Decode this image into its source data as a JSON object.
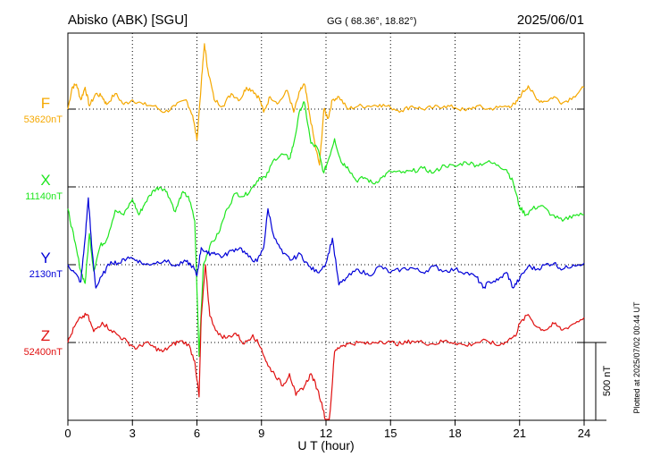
{
  "header": {
    "station": "Abisko (ABK)  [SGU]",
    "coords": "GG ( 68.36°,  18.82°)",
    "date": "2025/06/01"
  },
  "footer": {
    "plotted": "Plotted at 2025/07/02 00:44 UT"
  },
  "scale_label": "500 nT",
  "colors": {
    "F": "#f5a800",
    "X": "#1ee61e",
    "Y": "#0000d8",
    "Z": "#e01010"
  },
  "chart_data": {
    "type": "line",
    "xlabel": "U T (hour)",
    "xlim": [
      0,
      24
    ],
    "x_ticks": [
      0,
      3,
      6,
      9,
      12,
      15,
      18,
      21,
      24
    ],
    "x_tick_labels": [
      "0",
      "3",
      "6",
      "9",
      "12",
      "15",
      "18",
      "21",
      "24"
    ],
    "scale_bar_nT": 500,
    "series": [
      {
        "name": "F",
        "baseline_label": "53620nT",
        "baseline": 53620,
        "points": [
          [
            0,
            53620
          ],
          [
            0.2,
            53760
          ],
          [
            0.4,
            53780
          ],
          [
            0.6,
            53680
          ],
          [
            0.8,
            53760
          ],
          [
            1.0,
            53640
          ],
          [
            1.3,
            53720
          ],
          [
            1.6,
            53700
          ],
          [
            1.8,
            53650
          ],
          [
            2.2,
            53720
          ],
          [
            2.6,
            53650
          ],
          [
            3.0,
            53680
          ],
          [
            3.5,
            53650
          ],
          [
            4.0,
            53640
          ],
          [
            4.5,
            53600
          ],
          [
            5.0,
            53640
          ],
          [
            5.5,
            53680
          ],
          [
            5.8,
            53580
          ],
          [
            6.0,
            53420
          ],
          [
            6.2,
            53780
          ],
          [
            6.35,
            54040
          ],
          [
            6.5,
            53880
          ],
          [
            6.8,
            53680
          ],
          [
            7.2,
            53640
          ],
          [
            7.6,
            53720
          ],
          [
            8.0,
            53680
          ],
          [
            8.3,
            53760
          ],
          [
            8.6,
            53740
          ],
          [
            8.9,
            53690
          ],
          [
            9.1,
            53600
          ],
          [
            9.4,
            53700
          ],
          [
            9.8,
            53660
          ],
          [
            10.2,
            53740
          ],
          [
            10.5,
            53600
          ],
          [
            10.8,
            53740
          ],
          [
            11.0,
            53780
          ],
          [
            11.2,
            53620
          ],
          [
            11.5,
            53380
          ],
          [
            11.7,
            53260
          ],
          [
            11.9,
            53620
          ],
          [
            12.1,
            53560
          ],
          [
            12.3,
            53680
          ],
          [
            12.6,
            53700
          ],
          [
            13.0,
            53620
          ],
          [
            13.5,
            53640
          ],
          [
            14.0,
            53640
          ],
          [
            14.5,
            53650
          ],
          [
            15.0,
            53630
          ],
          [
            15.5,
            53610
          ],
          [
            16.0,
            53640
          ],
          [
            16.5,
            53620
          ],
          [
            17.0,
            53630
          ],
          [
            17.5,
            53640
          ],
          [
            18.0,
            53630
          ],
          [
            18.5,
            53610
          ],
          [
            19.0,
            53640
          ],
          [
            19.5,
            53620
          ],
          [
            20.0,
            53630
          ],
          [
            20.5,
            53640
          ],
          [
            20.8,
            53650
          ],
          [
            21.1,
            53720
          ],
          [
            21.4,
            53770
          ],
          [
            21.8,
            53680
          ],
          [
            22.2,
            53670
          ],
          [
            22.6,
            53700
          ],
          [
            23.0,
            53660
          ],
          [
            23.5,
            53700
          ],
          [
            24.0,
            53760
          ]
        ]
      },
      {
        "name": "X",
        "baseline_label": "11140nT",
        "baseline": 11140,
        "points": [
          [
            0,
            11000
          ],
          [
            0.3,
            10800
          ],
          [
            0.6,
            10600
          ],
          [
            0.8,
            10520
          ],
          [
            1.0,
            10840
          ],
          [
            1.2,
            10600
          ],
          [
            1.5,
            10760
          ],
          [
            1.8,
            10800
          ],
          [
            2.2,
            10990
          ],
          [
            2.6,
            10960
          ],
          [
            3.0,
            11060
          ],
          [
            3.3,
            10960
          ],
          [
            3.6,
            11040
          ],
          [
            4.0,
            11120
          ],
          [
            4.3,
            11140
          ],
          [
            4.6,
            11110
          ],
          [
            5.0,
            10980
          ],
          [
            5.3,
            11100
          ],
          [
            5.6,
            11080
          ],
          [
            5.9,
            10920
          ],
          [
            6.1,
            10050
          ],
          [
            6.3,
            10640
          ],
          [
            6.6,
            10760
          ],
          [
            7.0,
            10840
          ],
          [
            7.4,
            11000
          ],
          [
            7.8,
            11100
          ],
          [
            8.2,
            11080
          ],
          [
            8.6,
            11140
          ],
          [
            8.9,
            11200
          ],
          [
            9.2,
            11200
          ],
          [
            9.6,
            11320
          ],
          [
            10.0,
            11350
          ],
          [
            10.3,
            11320
          ],
          [
            10.5,
            11420
          ],
          [
            10.8,
            11640
          ],
          [
            11.0,
            11680
          ],
          [
            11.3,
            11420
          ],
          [
            11.6,
            11390
          ],
          [
            11.9,
            11230
          ],
          [
            12.1,
            11310
          ],
          [
            12.4,
            11450
          ],
          [
            12.7,
            11300
          ],
          [
            13.0,
            11270
          ],
          [
            13.4,
            11180
          ],
          [
            13.8,
            11200
          ],
          [
            14.2,
            11160
          ],
          [
            14.6,
            11200
          ],
          [
            15.0,
            11240
          ],
          [
            15.5,
            11230
          ],
          [
            16.0,
            11240
          ],
          [
            16.5,
            11260
          ],
          [
            17.0,
            11230
          ],
          [
            17.5,
            11280
          ],
          [
            18.0,
            11270
          ],
          [
            18.5,
            11300
          ],
          [
            19.0,
            11280
          ],
          [
            19.5,
            11300
          ],
          [
            20.0,
            11280
          ],
          [
            20.4,
            11250
          ],
          [
            20.7,
            11170
          ],
          [
            21.0,
            11010
          ],
          [
            21.3,
            10960
          ],
          [
            21.6,
            11000
          ],
          [
            22.0,
            11020
          ],
          [
            22.5,
            10960
          ],
          [
            23.0,
            10920
          ],
          [
            23.5,
            10960
          ],
          [
            24.0,
            10960
          ]
        ]
      },
      {
        "name": "Y",
        "baseline_label": "2130nT",
        "baseline": 2130,
        "points": [
          [
            0,
            2130
          ],
          [
            0.3,
            2080
          ],
          [
            0.6,
            2020
          ],
          [
            0.8,
            2300
          ],
          [
            0.95,
            2560
          ],
          [
            1.1,
            2260
          ],
          [
            1.3,
            1980
          ],
          [
            1.6,
            2060
          ],
          [
            2.0,
            2150
          ],
          [
            2.4,
            2140
          ],
          [
            2.8,
            2180
          ],
          [
            3.2,
            2160
          ],
          [
            3.6,
            2130
          ],
          [
            4.0,
            2140
          ],
          [
            4.5,
            2160
          ],
          [
            5.0,
            2120
          ],
          [
            5.5,
            2150
          ],
          [
            5.8,
            2120
          ],
          [
            6.0,
            2060
          ],
          [
            6.2,
            2240
          ],
          [
            6.5,
            2200
          ],
          [
            6.8,
            2210
          ],
          [
            7.2,
            2180
          ],
          [
            7.6,
            2220
          ],
          [
            8.0,
            2240
          ],
          [
            8.4,
            2180
          ],
          [
            8.8,
            2150
          ],
          [
            9.1,
            2240
          ],
          [
            9.3,
            2490
          ],
          [
            9.6,
            2300
          ],
          [
            10.0,
            2200
          ],
          [
            10.4,
            2160
          ],
          [
            10.8,
            2200
          ],
          [
            11.2,
            2120
          ],
          [
            11.6,
            2080
          ],
          [
            12.0,
            2140
          ],
          [
            12.3,
            2300
          ],
          [
            12.6,
            2000
          ],
          [
            13.0,
            2050
          ],
          [
            13.5,
            2100
          ],
          [
            14.0,
            2060
          ],
          [
            14.5,
            2120
          ],
          [
            15.0,
            2080
          ],
          [
            15.5,
            2100
          ],
          [
            16.0,
            2110
          ],
          [
            16.5,
            2080
          ],
          [
            17.0,
            2120
          ],
          [
            17.5,
            2090
          ],
          [
            18.0,
            2100
          ],
          [
            18.5,
            2080
          ],
          [
            19.0,
            2050
          ],
          [
            19.3,
            1980
          ],
          [
            19.6,
            2020
          ],
          [
            20.0,
            2030
          ],
          [
            20.4,
            2080
          ],
          [
            20.7,
            1980
          ],
          [
            21.0,
            2040
          ],
          [
            21.4,
            2120
          ],
          [
            21.8,
            2100
          ],
          [
            22.2,
            2130
          ],
          [
            22.6,
            2140
          ],
          [
            23.0,
            2100
          ],
          [
            23.5,
            2130
          ],
          [
            24.0,
            2140
          ]
        ]
      },
      {
        "name": "Z",
        "baseline_label": "52400nT",
        "baseline": 52400,
        "points": [
          [
            0,
            52400
          ],
          [
            0.3,
            52500
          ],
          [
            0.6,
            52560
          ],
          [
            0.9,
            52580
          ],
          [
            1.2,
            52470
          ],
          [
            1.6,
            52530
          ],
          [
            2.0,
            52480
          ],
          [
            2.4,
            52440
          ],
          [
            2.8,
            52400
          ],
          [
            3.2,
            52360
          ],
          [
            3.6,
            52400
          ],
          [
            4.0,
            52370
          ],
          [
            4.4,
            52340
          ],
          [
            4.8,
            52380
          ],
          [
            5.2,
            52410
          ],
          [
            5.6,
            52390
          ],
          [
            5.9,
            52280
          ],
          [
            6.1,
            52050
          ],
          [
            6.2,
            52560
          ],
          [
            6.4,
            52900
          ],
          [
            6.6,
            52570
          ],
          [
            7.0,
            52450
          ],
          [
            7.4,
            52430
          ],
          [
            7.8,
            52460
          ],
          [
            8.2,
            52390
          ],
          [
            8.6,
            52450
          ],
          [
            9.0,
            52360
          ],
          [
            9.3,
            52250
          ],
          [
            9.6,
            52200
          ],
          [
            10.0,
            52120
          ],
          [
            10.3,
            52200
          ],
          [
            10.6,
            52060
          ],
          [
            11.0,
            52120
          ],
          [
            11.3,
            52200
          ],
          [
            11.6,
            52100
          ],
          [
            11.9,
            51960
          ],
          [
            12.1,
            51780
          ],
          [
            12.4,
            52340
          ],
          [
            12.7,
            52380
          ],
          [
            13.0,
            52390
          ],
          [
            13.5,
            52400
          ],
          [
            14.0,
            52390
          ],
          [
            14.5,
            52410
          ],
          [
            15.0,
            52400
          ],
          [
            15.5,
            52390
          ],
          [
            16.0,
            52410
          ],
          [
            16.5,
            52400
          ],
          [
            17.0,
            52390
          ],
          [
            17.5,
            52410
          ],
          [
            18.0,
            52400
          ],
          [
            18.5,
            52380
          ],
          [
            19.0,
            52400
          ],
          [
            19.5,
            52410
          ],
          [
            20.0,
            52380
          ],
          [
            20.5,
            52420
          ],
          [
            20.8,
            52440
          ],
          [
            21.0,
            52520
          ],
          [
            21.4,
            52580
          ],
          [
            21.8,
            52500
          ],
          [
            22.2,
            52480
          ],
          [
            22.6,
            52520
          ],
          [
            23.0,
            52480
          ],
          [
            23.5,
            52520
          ],
          [
            24.0,
            52560
          ]
        ]
      }
    ]
  }
}
